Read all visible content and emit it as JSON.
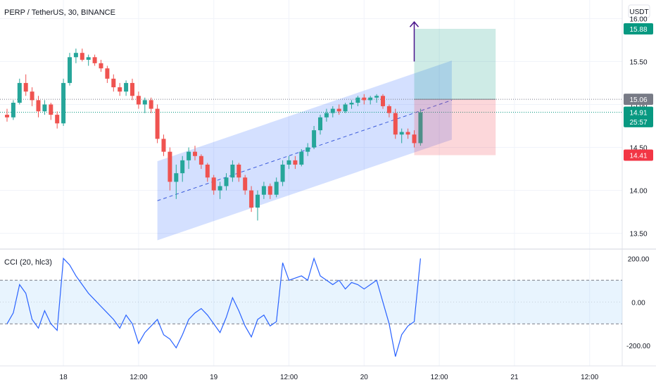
{
  "header": {
    "symbol_title": "PERP / TetherUS, 30, BINANCE",
    "currency": "USDT"
  },
  "chart_data": [
    {
      "type": "candlestick",
      "title": "PERP / TetherUS, 30, BINANCE",
      "y_unit": "USDT",
      "ylim": [
        13.35,
        16.15
      ],
      "y_ticks": [
        "16.00",
        "15.50",
        "15.00",
        "14.50",
        "14.00",
        "13.50"
      ],
      "price_labels": [
        {
          "text": "15.88",
          "value": 15.88,
          "color": "#089981"
        },
        {
          "text": "15.06",
          "value": 15.06,
          "color": "#787b86"
        },
        {
          "text": "14.91",
          "value": 14.91,
          "color": "#089981"
        },
        {
          "text": "25:57",
          "value": 14.8,
          "color": "#089981"
        },
        {
          "text": "14.41",
          "value": 14.41,
          "color": "#f23645"
        }
      ],
      "horizontal_lines": [
        15.06,
        14.91
      ],
      "channel": {
        "start_x": 24,
        "end_x": 71,
        "start_mid": 13.88,
        "end_mid": 15.05,
        "half_height": 0.46
      },
      "position": {
        "start_x": 65,
        "end_x": 78,
        "entry": 15.06,
        "target": 15.88,
        "stop": 14.41
      },
      "arrow": {
        "x": 65,
        "from": 15.5,
        "to": 15.96
      },
      "candles": [
        [
          14.88,
          14.95,
          14.8,
          14.85
        ],
        [
          14.85,
          15.05,
          14.82,
          15.02
        ],
        [
          15.02,
          15.3,
          15.0,
          15.25
        ],
        [
          15.25,
          15.35,
          15.1,
          15.15
        ],
        [
          15.15,
          15.2,
          14.98,
          15.05
        ],
        [
          15.05,
          15.1,
          14.85,
          14.92
        ],
        [
          14.92,
          15.05,
          14.88,
          15.0
        ],
        [
          15.0,
          15.02,
          14.82,
          14.88
        ],
        [
          14.88,
          14.92,
          14.72,
          14.78
        ],
        [
          14.78,
          15.3,
          14.75,
          15.25
        ],
        [
          15.25,
          15.6,
          15.22,
          15.55
        ],
        [
          15.55,
          15.65,
          15.48,
          15.6
        ],
        [
          15.6,
          15.65,
          15.5,
          15.52
        ],
        [
          15.52,
          15.58,
          15.45,
          15.55
        ],
        [
          15.55,
          15.58,
          15.45,
          15.48
        ],
        [
          15.48,
          15.52,
          15.38,
          15.42
        ],
        [
          15.42,
          15.45,
          15.25,
          15.3
        ],
        [
          15.3,
          15.35,
          15.15,
          15.2
        ],
        [
          15.2,
          15.25,
          15.1,
          15.15
        ],
        [
          15.15,
          15.28,
          15.1,
          15.25
        ],
        [
          15.25,
          15.3,
          15.05,
          15.1
        ],
        [
          15.1,
          15.15,
          14.95,
          15.0
        ],
        [
          15.0,
          15.08,
          14.9,
          15.05
        ],
        [
          15.05,
          15.08,
          14.9,
          14.95
        ],
        [
          14.95,
          15.0,
          14.55,
          14.6
        ],
        [
          14.6,
          14.65,
          14.4,
          14.45
        ],
        [
          14.45,
          14.5,
          14.0,
          14.1
        ],
        [
          14.1,
          14.3,
          13.9,
          14.2
        ],
        [
          14.2,
          14.4,
          14.1,
          14.35
        ],
        [
          14.35,
          14.5,
          14.25,
          14.45
        ],
        [
          14.45,
          14.52,
          14.35,
          14.4
        ],
        [
          14.4,
          14.42,
          14.25,
          14.3
        ],
        [
          14.3,
          14.32,
          14.1,
          14.15
        ],
        [
          14.15,
          14.18,
          13.95,
          14.0
        ],
        [
          14.0,
          14.1,
          13.9,
          14.05
        ],
        [
          14.05,
          14.2,
          14.0,
          14.15
        ],
        [
          14.15,
          14.35,
          14.1,
          14.3
        ],
        [
          14.3,
          14.32,
          14.1,
          14.15
        ],
        [
          14.15,
          14.18,
          13.95,
          14.0
        ],
        [
          14.0,
          14.05,
          13.75,
          13.8
        ],
        [
          13.8,
          14.0,
          13.65,
          13.95
        ],
        [
          13.95,
          14.1,
          13.9,
          14.05
        ],
        [
          14.05,
          14.08,
          13.9,
          13.95
        ],
        [
          13.95,
          14.15,
          13.92,
          14.1
        ],
        [
          14.1,
          14.35,
          14.05,
          14.3
        ],
        [
          14.3,
          14.4,
          14.25,
          14.35
        ],
        [
          14.35,
          14.4,
          14.25,
          14.3
        ],
        [
          14.3,
          14.48,
          14.28,
          14.45
        ],
        [
          14.45,
          14.55,
          14.4,
          14.5
        ],
        [
          14.5,
          14.75,
          14.48,
          14.7
        ],
        [
          14.7,
          14.88,
          14.65,
          14.85
        ],
        [
          14.85,
          14.95,
          14.8,
          14.9
        ],
        [
          14.9,
          14.98,
          14.85,
          14.95
        ],
        [
          14.95,
          15.0,
          14.88,
          14.92
        ],
        [
          14.92,
          15.02,
          14.9,
          15.0
        ],
        [
          15.0,
          15.05,
          14.95,
          15.02
        ],
        [
          15.02,
          15.1,
          14.98,
          15.08
        ],
        [
          15.08,
          15.12,
          15.0,
          15.05
        ],
        [
          15.05,
          15.1,
          15.0,
          15.08
        ],
        [
          15.08,
          15.12,
          15.02,
          15.1
        ],
        [
          15.1,
          15.12,
          14.95,
          14.98
        ],
        [
          14.98,
          15.0,
          14.85,
          14.9
        ],
        [
          14.9,
          14.95,
          14.6,
          14.65
        ],
        [
          14.65,
          14.72,
          14.55,
          14.68
        ],
        [
          14.68,
          14.72,
          14.6,
          14.65
        ],
        [
          14.65,
          14.7,
          14.5,
          14.55
        ],
        [
          14.55,
          14.95,
          14.52,
          14.91
        ]
      ]
    },
    {
      "type": "line",
      "title": "CCI (20, hlc3)",
      "ylim": [
        -280,
        230
      ],
      "y_ticks": [
        "200.00",
        "0.00",
        "-200.00"
      ],
      "band": [
        100,
        -100
      ],
      "x_ticks": [
        {
          "label": "18",
          "x": 9
        },
        {
          "label": "12:00",
          "x": 21
        },
        {
          "label": "19",
          "x": 33
        },
        {
          "label": "12:00",
          "x": 45
        },
        {
          "label": "20",
          "x": 57
        },
        {
          "label": "12:00",
          "x": 69
        },
        {
          "label": "21",
          "x": 81
        },
        {
          "label": "12:00",
          "x": 93
        }
      ],
      "series": [
        {
          "color": "#2962ff",
          "values": [
            -100,
            -50,
            80,
            40,
            -80,
            -120,
            -40,
            -100,
            -130,
            200,
            170,
            120,
            80,
            40,
            10,
            -20,
            -50,
            -80,
            -120,
            -60,
            -100,
            -190,
            -140,
            -110,
            -80,
            -150,
            -170,
            -210,
            -150,
            -80,
            -50,
            -30,
            -60,
            -100,
            -140,
            -70,
            20,
            -40,
            -110,
            -160,
            -80,
            -60,
            -110,
            -90,
            180,
            100,
            110,
            120,
            100,
            200,
            120,
            100,
            80,
            100,
            60,
            90,
            80,
            60,
            80,
            100,
            0,
            -100,
            -250,
            -150,
            -110,
            -90,
            200
          ]
        }
      ]
    }
  ]
}
